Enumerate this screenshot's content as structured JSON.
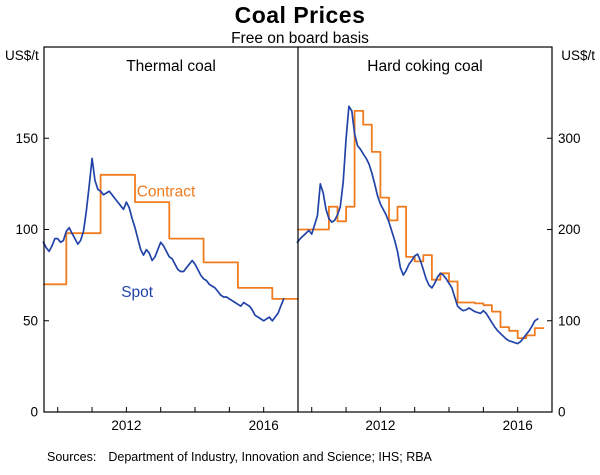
{
  "sources": {
    "label": "Sources:",
    "text": "Department of Industry, Innovation and Science; IHS; RBA"
  },
  "chart_data": {
    "type": "line",
    "title": "Coal Prices",
    "subtitle": "Free on board basis",
    "unit_label": "US$/t",
    "legend_position": "in-panel annotations",
    "grid": false,
    "colors": {
      "spot": "#2244a8",
      "contract": "#f07c20",
      "axis": "#000000"
    },
    "xlim": [
      2009.6,
      2017.0
    ],
    "xtick_labels": [
      {
        "x": 2012,
        "label": "2012"
      },
      {
        "x": 2016,
        "label": "2016"
      }
    ],
    "panels": [
      {
        "title": "Thermal coal",
        "axis_side": "left",
        "ylim": [
          0,
          200
        ],
        "yticks": [
          0,
          50,
          100,
          150
        ],
        "annotations": [
          {
            "text": "Contract",
            "x": 2012.3,
            "y": 118,
            "color": "contract"
          },
          {
            "text": "Spot",
            "x": 2011.85,
            "y": 63,
            "color": "spot"
          }
        ],
        "series": [
          {
            "name": "Contract",
            "type": "step",
            "color": "contract",
            "points": [
              [
                2009.6,
                70
              ],
              [
                2010.25,
                98
              ],
              [
                2011.25,
                130
              ],
              [
                2012.25,
                115
              ],
              [
                2013.25,
                95
              ],
              [
                2014.25,
                82
              ],
              [
                2015.25,
                68
              ],
              [
                2016.25,
                62
              ],
              [
                2017.0,
                62
              ]
            ]
          },
          {
            "name": "Spot",
            "type": "line",
            "color": "spot",
            "x_start": 2009.5833,
            "x_step": 0.0833333,
            "values": [
              93,
              90,
              88,
              91,
              95,
              95,
              93,
              94,
              99,
              101,
              98,
              95,
              92,
              94,
              99,
              110,
              124,
              139,
              127,
              122,
              121,
              119,
              120,
              121,
              119,
              117,
              115,
              113,
              111,
              115,
              112,
              106,
              101,
              95,
              89,
              86,
              89,
              87,
              83,
              85,
              89,
              93,
              91,
              88,
              85,
              84,
              81,
              78,
              77,
              77,
              79,
              81,
              83,
              81,
              78,
              75,
              73,
              72,
              70,
              69,
              68,
              66,
              64,
              63,
              63,
              62,
              61,
              60,
              59,
              58,
              60,
              59,
              58,
              56,
              53,
              52,
              51,
              50,
              51,
              52,
              50,
              52,
              54,
              58,
              62
            ]
          }
        ]
      },
      {
        "title": "Hard coking coal",
        "axis_side": "right",
        "ylim": [
          0,
          400
        ],
        "yticks": [
          0,
          100,
          200,
          300
        ],
        "annotations": [],
        "series": [
          {
            "name": "Contract",
            "type": "step",
            "color": "contract",
            "points": [
              [
                2009.6,
                200
              ],
              [
                2010.5,
                225
              ],
              [
                2010.75,
                209
              ],
              [
                2011.0,
                225
              ],
              [
                2011.25,
                330
              ],
              [
                2011.5,
                315
              ],
              [
                2011.75,
                285
              ],
              [
                2012.0,
                235
              ],
              [
                2012.25,
                210
              ],
              [
                2012.5,
                225
              ],
              [
                2012.75,
                170
              ],
              [
                2013.0,
                165
              ],
              [
                2013.25,
                172
              ],
              [
                2013.5,
                145
              ],
              [
                2013.75,
                152
              ],
              [
                2014.0,
                143
              ],
              [
                2014.25,
                120
              ],
              [
                2014.5,
                120
              ],
              [
                2014.75,
                119
              ],
              [
                2015.0,
                117
              ],
              [
                2015.25,
                110
              ],
              [
                2015.5,
                93
              ],
              [
                2015.75,
                89
              ],
              [
                2016.0,
                81
              ],
              [
                2016.25,
                84
              ],
              [
                2016.5,
                92
              ],
              [
                2016.75,
                92
              ]
            ]
          },
          {
            "name": "Spot",
            "type": "line",
            "color": "spot",
            "x_start": 2009.5833,
            "x_step": 0.0833333,
            "values": [
              186,
              190,
              193,
              196,
              199,
              195,
              205,
              215,
              250,
              240,
              222,
              212,
              208,
              210,
              216,
              225,
              252,
              300,
              335,
              330,
              305,
              292,
              288,
              283,
              278,
              272,
              262,
              250,
              237,
              228,
              222,
              216,
              208,
              198,
              188,
              176,
              158,
              150,
              155,
              162,
              166,
              171,
              173,
              166,
              156,
              146,
              139,
              136,
              141,
              148,
              152,
              150,
              146,
              141,
              136,
              126,
              116,
              113,
              111,
              112,
              114,
              112,
              110,
              109,
              108,
              111,
              108,
              103,
              98,
              93,
              89,
              86,
              83,
              80,
              78,
              77,
              76,
              75,
              77,
              81,
              85,
              89,
              94,
              100,
              102
            ]
          }
        ]
      }
    ]
  }
}
